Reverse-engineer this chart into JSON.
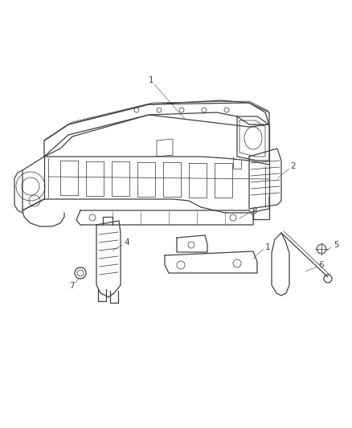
{
  "background_color": "#ffffff",
  "line_color": "#404040",
  "label_color": "#404040",
  "figsize": [
    4.38,
    5.33
  ],
  "dpi": 100,
  "lw_main": 0.9,
  "lw_thin": 0.55,
  "label_fontsize": 7.5
}
